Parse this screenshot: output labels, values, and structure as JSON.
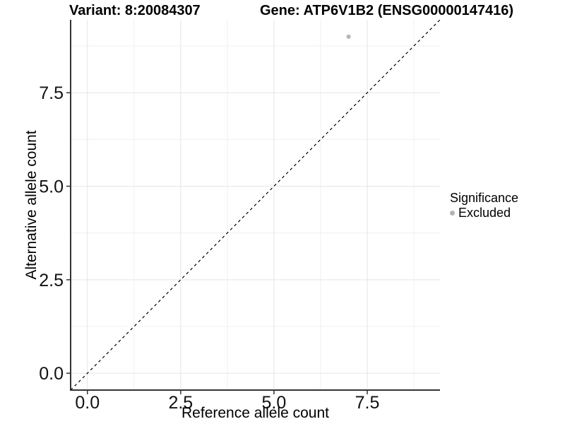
{
  "figure": {
    "title_left": "Variant: 8:20084307",
    "title_right": "Gene: ATP6V1B2 (ENSG00000147416)"
  },
  "chart_data": {
    "type": "scatter",
    "title": "Variant: 8:20084307   Gene: ATP6V1B2 (ENSG00000147416)",
    "xlabel": "Reference allele count",
    "ylabel": "Alternative allele count",
    "xlim": [
      -0.45,
      9.45
    ],
    "ylim": [
      -0.45,
      9.45
    ],
    "x_ticks": [
      0,
      2.5,
      5,
      7.5
    ],
    "x_tick_labels": [
      "0.0",
      "2.5",
      "5.0",
      "7.5"
    ],
    "y_ticks": [
      0,
      2.5,
      5,
      7.5
    ],
    "y_tick_labels": [
      "0.0",
      "2.5",
      "5.0",
      "7.5"
    ],
    "x_minor_ticks": [
      1.25,
      3.75,
      6.25,
      8.75
    ],
    "y_minor_ticks": [
      1.25,
      3.75,
      6.25,
      8.75
    ],
    "grid": "major+minor",
    "series": [
      {
        "name": "Excluded",
        "color": "#b4b4b4",
        "points": [
          {
            "x": 7,
            "y": 9
          }
        ]
      }
    ],
    "reference_line": {
      "kind": "identity",
      "equation": "y = x",
      "style": "dashed",
      "color": "#000000"
    },
    "legend": {
      "title": "Significance",
      "position": "right",
      "items": [
        {
          "label": "Excluded",
          "color": "#b4b4b4",
          "marker": "circle"
        }
      ]
    },
    "style": {
      "background": "#ffffff",
      "grid_major_color": "#e5e5e5",
      "grid_minor_color": "#f0f0f0",
      "axis_line_color": "#333333",
      "tick_mark_color": "#333333",
      "tick_label_color": "#111111",
      "text_color": "#000000",
      "point_radius": 3
    }
  }
}
